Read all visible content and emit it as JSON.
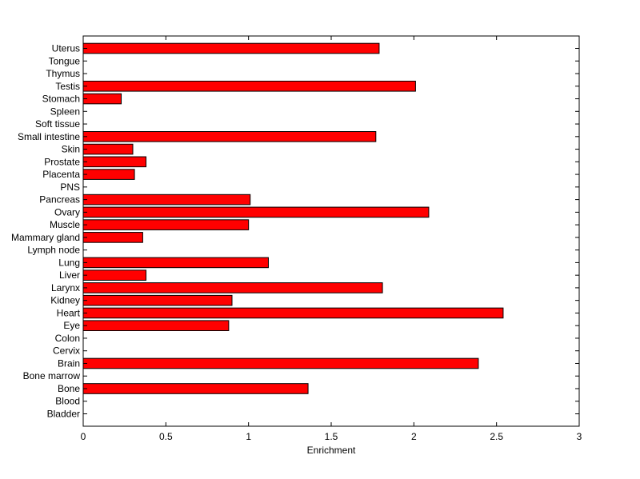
{
  "chart_data": {
    "type": "bar",
    "orientation": "horizontal",
    "title": "",
    "xlabel": "Enrichment",
    "ylabel": "",
    "xlim": [
      0,
      3
    ],
    "xticks": [
      0,
      0.5,
      1,
      1.5,
      2,
      2.5,
      3
    ],
    "xtick_labels": [
      "0",
      "0.5",
      "1",
      "1.5",
      "2",
      "2.5",
      "3"
    ],
    "grid": false,
    "legend": "none",
    "bar_color": "#ff0000",
    "categories": [
      "Bladder",
      "Blood",
      "Bone",
      "Bone marrow",
      "Brain",
      "Cervix",
      "Colon",
      "Eye",
      "Heart",
      "Kidney",
      "Larynx",
      "Liver",
      "Lung",
      "Lymph node",
      "Mammary gland",
      "Muscle",
      "Ovary",
      "Pancreas",
      "PNS",
      "Placenta",
      "Prostate",
      "Skin",
      "Small intestine",
      "Soft tissue",
      "Spleen",
      "Stomach",
      "Testis",
      "Thymus",
      "Tongue",
      "Uterus"
    ],
    "values": [
      0,
      0,
      1.36,
      0,
      2.39,
      0,
      0,
      0.88,
      2.54,
      0.9,
      1.81,
      0.38,
      1.12,
      0,
      0.36,
      1.0,
      2.09,
      1.01,
      0,
      0.31,
      0.38,
      0.3,
      1.77,
      0,
      0,
      0.23,
      2.01,
      0,
      0,
      1.79
    ]
  }
}
